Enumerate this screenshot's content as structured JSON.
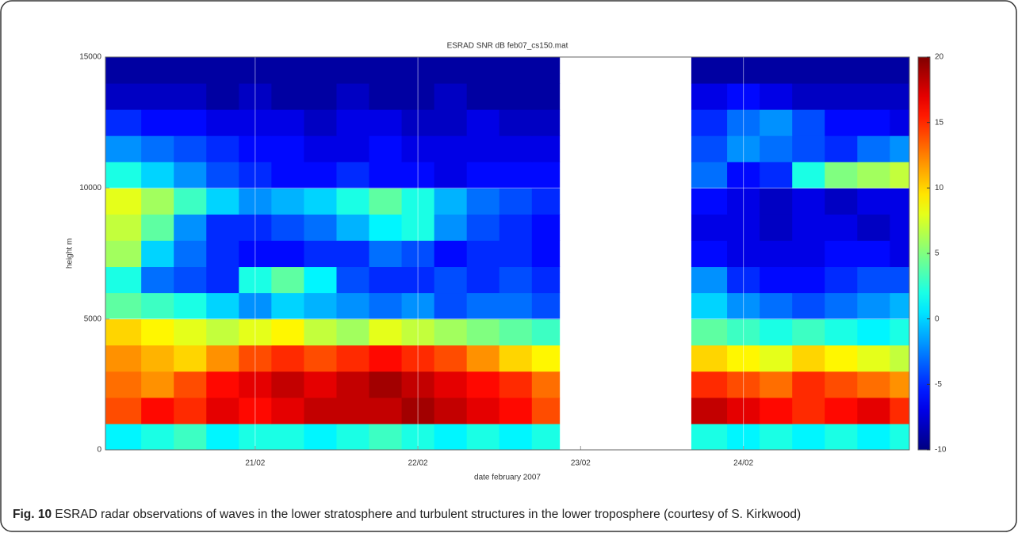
{
  "chart_data": {
    "type": "heatmap",
    "title": "ESRAD  SNR dB feb07_cs150.mat",
    "xlabel": "date february 2007",
    "ylabel": "height m",
    "x_bins": [
      20.08,
      20.3,
      20.5,
      20.7,
      20.9,
      21.1,
      21.3,
      21.5,
      21.7,
      21.9,
      22.1,
      22.3,
      22.5,
      22.7,
      22.87,
      23.68,
      23.9,
      24.1,
      24.3,
      24.5,
      24.7,
      24.9,
      25.02
    ],
    "y_bins": [
      0,
      1000,
      2000,
      3000,
      4000,
      5000,
      6000,
      7000,
      8000,
      9000,
      10000,
      11000,
      12000,
      13000,
      14000,
      15000
    ],
    "values": [
      [
        1,
        2,
        3,
        1,
        2,
        2,
        1,
        2,
        3,
        2,
        1,
        2,
        1,
        2,
        null,
        2,
        1,
        2,
        1,
        2,
        1,
        2
      ],
      [
        14,
        16,
        15,
        17,
        16,
        17,
        18,
        18,
        18,
        19,
        18,
        17,
        16,
        14,
        null,
        18,
        17,
        16,
        15,
        16,
        17,
        15
      ],
      [
        13,
        12,
        14,
        16,
        17,
        18,
        17,
        18,
        19,
        18,
        17,
        16,
        15,
        13,
        null,
        15,
        14,
        13,
        15,
        14,
        13,
        12
      ],
      [
        12,
        11,
        10,
        12,
        14,
        15,
        14,
        15,
        16,
        15,
        14,
        12,
        10,
        9,
        null,
        10,
        9,
        8,
        10,
        9,
        8,
        7
      ],
      [
        10,
        9,
        8,
        7,
        8,
        9,
        7,
        6,
        8,
        7,
        6,
        5,
        4,
        3,
        null,
        4,
        3,
        2,
        3,
        2,
        1,
        2
      ],
      [
        4,
        3,
        2,
        0,
        -2,
        0,
        -1,
        -2,
        -3,
        -2,
        -4,
        -3,
        -3,
        -4,
        null,
        0,
        -2,
        -3,
        -4,
        -3,
        -2,
        -1
      ],
      [
        2,
        -3,
        -4,
        -5,
        2,
        4,
        1,
        -4,
        -5,
        -5,
        -4,
        -5,
        -4,
        -5,
        null,
        -2,
        -5,
        -6,
        -6,
        -5,
        -4,
        -4
      ],
      [
        6,
        0,
        -3,
        -5,
        -6,
        -6,
        -5,
        -5,
        -3,
        -4,
        -6,
        -5,
        -5,
        -6,
        null,
        -6,
        -7,
        -7,
        -7,
        -6,
        -6,
        -7
      ],
      [
        7,
        4,
        -2,
        -5,
        -5,
        -4,
        -3,
        -1,
        1,
        2,
        -2,
        -4,
        -5,
        -6,
        null,
        -7,
        -7,
        -8,
        -7,
        -7,
        -8,
        -7
      ],
      [
        8,
        6,
        3,
        0,
        -2,
        -1,
        0,
        2,
        4,
        2,
        -1,
        -3,
        -4,
        -5,
        null,
        -6,
        -7,
        -8,
        -7,
        -8,
        -7,
        -7
      ],
      [
        2,
        0,
        -2,
        -4,
        -5,
        -6,
        -6,
        -5,
        -6,
        -6,
        -7,
        -6,
        -6,
        -6,
        null,
        -3,
        -6,
        -5,
        2,
        5,
        6,
        7
      ],
      [
        -2,
        -3,
        -4,
        -5,
        -6,
        -6,
        -7,
        -7,
        -6,
        -7,
        -7,
        -7,
        -7,
        -7,
        null,
        -4,
        -2,
        -3,
        -4,
        -5,
        -3,
        -2
      ],
      [
        -5,
        -6,
        -6,
        -7,
        -7,
        -7,
        -8,
        -7,
        -7,
        -8,
        -8,
        -7,
        -8,
        -8,
        null,
        -5,
        -3,
        -2,
        -4,
        -6,
        -6,
        -7
      ],
      [
        -8,
        -8,
        -8,
        -9,
        -8,
        -9,
        -9,
        -8,
        -9,
        -9,
        -8,
        -9,
        -9,
        -9,
        null,
        -7,
        -6,
        -7,
        -8,
        -8,
        -8,
        -8
      ],
      [
        -9,
        -9,
        -9,
        -9,
        -9,
        -9,
        -9,
        -9,
        -9,
        -9,
        -9,
        -9,
        -9,
        -9,
        null,
        -9,
        -9,
        -9,
        -9,
        -9,
        -9,
        -9
      ]
    ],
    "colormap": "jet",
    "clim": [
      -10,
      20
    ],
    "colorbar_ticks": [
      -10,
      -5,
      0,
      5,
      10,
      15,
      20
    ],
    "xlim": [
      20.08,
      25.02
    ],
    "xticks": [
      {
        "value": 21,
        "label": "21/02"
      },
      {
        "value": 22,
        "label": "22/02"
      },
      {
        "value": 23,
        "label": "23/02"
      },
      {
        "value": 24,
        "label": "24/02"
      }
    ],
    "ylim": [
      0,
      15000
    ],
    "yticks": [
      0,
      5000,
      10000,
      15000
    ],
    "grid": true
  },
  "caption": {
    "label": "Fig. 10",
    "text": "ESRAD radar observations of waves in the lower stratosphere and turbulent structures in the lower troposphere (courtesy of S. Kirkwood)"
  }
}
